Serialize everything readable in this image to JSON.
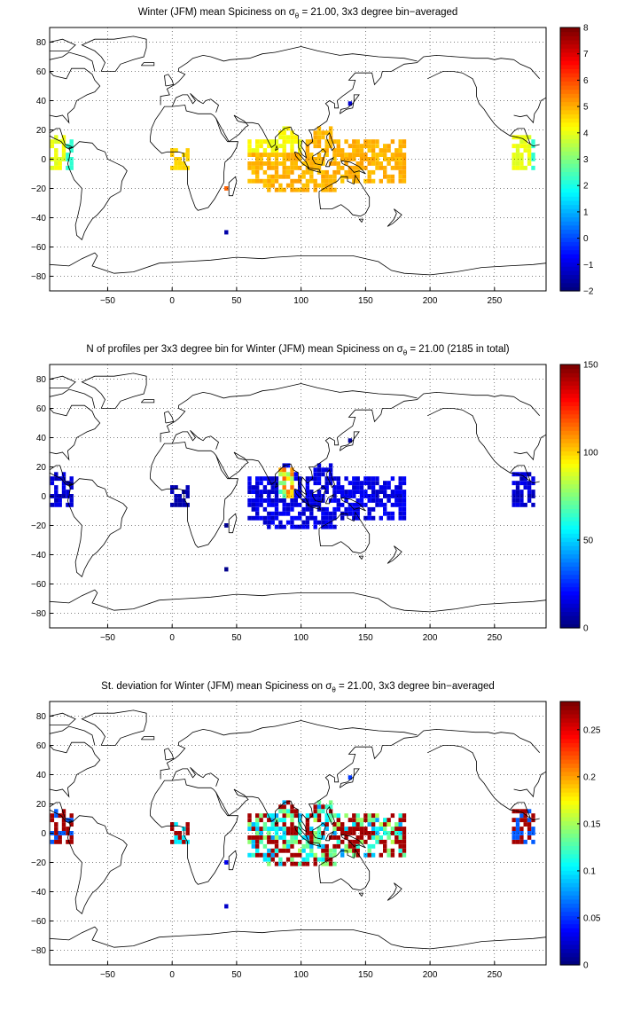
{
  "maps": [
    {
      "id": "mean",
      "title_pre": "Winter (JFM) mean Spiciness on σ",
      "title_sub": "θ",
      "title_post": " = 21.00, 3x3 degree bin−averaged",
      "x_ticks": [
        "−50",
        "0",
        "50",
        "100",
        "150",
        "200",
        "250"
      ],
      "y_ticks": [
        "80",
        "60",
        "40",
        "20",
        "0",
        "−20",
        "−40",
        "−60",
        "−80"
      ],
      "colorbar": {
        "min": -2,
        "max": 8,
        "ticks": [
          "8",
          "7",
          "6",
          "5",
          "4",
          "3",
          "2",
          "1",
          "0",
          "−1",
          "−2"
        ]
      }
    },
    {
      "id": "count",
      "title_pre": "N of profiles per 3x3 degree bin for Winter (JFM) mean Spiciness on σ",
      "title_sub": "θ",
      "title_post": " = 21.00 (2185 in total)",
      "x_ticks": [
        "−50",
        "0",
        "50",
        "100",
        "150",
        "200",
        "250"
      ],
      "y_ticks": [
        "80",
        "60",
        "40",
        "20",
        "0",
        "−20",
        "−40",
        "−60",
        "−80"
      ],
      "colorbar": {
        "min": 0,
        "max": 150,
        "ticks": [
          "150",
          "100",
          "50",
          "0"
        ]
      }
    },
    {
      "id": "std",
      "title_pre": "St. deviation for Winter (JFM) mean Spiciness on σ",
      "title_sub": "θ",
      "title_post": " = 21.00, 3x3 degree bin−averaged",
      "x_ticks": [
        "−50",
        "0",
        "50",
        "100",
        "150",
        "200",
        "250"
      ],
      "y_ticks": [
        "80",
        "60",
        "40",
        "20",
        "0",
        "−20",
        "−40",
        "−60",
        "−80"
      ],
      "colorbar": {
        "min": 0,
        "max": 0.28,
        "ticks": [
          "0.25",
          "0.2",
          "0.15",
          "0.1",
          "0.05",
          "0"
        ]
      }
    }
  ],
  "axes": {
    "xlim": [
      -95,
      290
    ],
    "ylim": [
      -90,
      90
    ],
    "grid": true,
    "grid_style": "dotted"
  },
  "colormap": "jet",
  "coastline_color": "#000000"
}
